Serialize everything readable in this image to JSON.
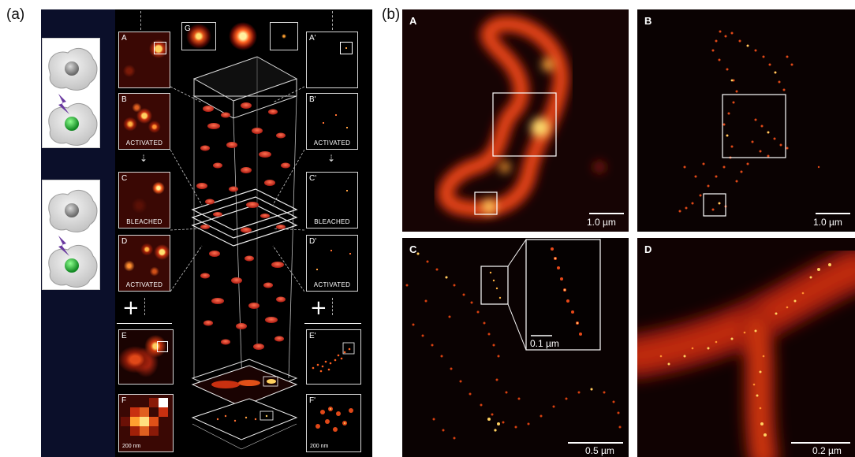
{
  "figure": {
    "part_a": {
      "letter": "(a)",
      "subpanels": [
        {
          "label": "A",
          "caption": ""
        },
        {
          "label": "B",
          "caption": "ACTIVATED"
        },
        {
          "label": "C",
          "caption": "BLEACHED"
        },
        {
          "label": "D",
          "caption": "ACTIVATED"
        },
        {
          "label": "E",
          "caption": ""
        },
        {
          "label": "F",
          "caption": "",
          "scale": "200 nm"
        },
        {
          "label": "A'",
          "caption": ""
        },
        {
          "label": "B'",
          "caption": "ACTIVATED"
        },
        {
          "label": "C'",
          "caption": "BLEACHED"
        },
        {
          "label": "D'",
          "caption": "ACTIVATED"
        },
        {
          "label": "E'",
          "caption": ""
        },
        {
          "label": "F'",
          "caption": "",
          "scale": "200 nm"
        }
      ],
      "g_label": "G",
      "plus_symbol": "+"
    },
    "part_b": {
      "letter": "(b)",
      "panels": [
        {
          "label": "A",
          "scale": "1.0 µm"
        },
        {
          "label": "B",
          "scale": "1.0 µm"
        },
        {
          "label": "C",
          "scale": "0.5 µm",
          "inset_scale": "0.1 µm"
        },
        {
          "label": "D",
          "scale": "0.2 µm"
        }
      ]
    },
    "colors": {
      "navy": "#0b0f2a",
      "hot_red": "#e03010",
      "hot_orange": "#ff8a20",
      "hot_yellow": "#fff080",
      "cell_gray": "#8c8c8c",
      "cell_green": "#22aa33",
      "bolt_purple": "#6a3aa0"
    }
  }
}
